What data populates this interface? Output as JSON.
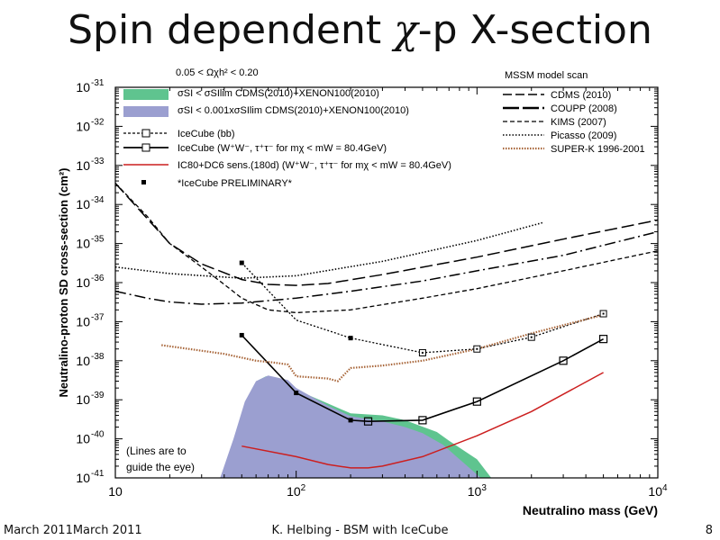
{
  "slide": {
    "title_pre": "Spin dependent ",
    "title_chi": "χ",
    "title_post": "-p X-section",
    "footer_left": "March 2011March 2011",
    "footer_center": "K. Helbing - BSM with IceCube",
    "footer_right": "8"
  },
  "chart_data": {
    "type": "line",
    "xscale": "log",
    "yscale": "log",
    "xlim": [
      10,
      10000
    ],
    "ylim": [
      1e-41,
      1e-31
    ],
    "xlabel": "Neutralino mass (GeV)",
    "ylabel": "Neutralino-proton SD cross-section (cm²)",
    "x_ticks": [
      {
        "value": 10,
        "base": "10",
        "exp": ""
      },
      {
        "value": 100,
        "base": "10",
        "exp": "2"
      },
      {
        "value": 1000,
        "base": "10",
        "exp": "3"
      },
      {
        "value": 10000,
        "base": "10",
        "exp": "4"
      }
    ],
    "y_ticks": [
      {
        "value": 1e-31,
        "base": "10",
        "exp": "-31"
      },
      {
        "value": 1e-32,
        "base": "10",
        "exp": "-32"
      },
      {
        "value": 1e-33,
        "base": "10",
        "exp": "-33"
      },
      {
        "value": 1e-34,
        "base": "10",
        "exp": "-34"
      },
      {
        "value": 1e-35,
        "base": "10",
        "exp": "-35"
      },
      {
        "value": 1e-36,
        "base": "10",
        "exp": "-36"
      },
      {
        "value": 1e-37,
        "base": "10",
        "exp": "-37"
      },
      {
        "value": 1e-38,
        "base": "10",
        "exp": "-38"
      },
      {
        "value": 1e-39,
        "base": "10",
        "exp": "-39"
      },
      {
        "value": 1e-40,
        "base": "10",
        "exp": "-40"
      },
      {
        "value": 1e-41,
        "base": "10",
        "exp": "-41"
      }
    ],
    "top_annotation": "0.05 < Ωχh² < 0.20",
    "model_scan_label": "MSSM model scan",
    "lines_note": [
      "(Lines are to",
      "guide the eye)"
    ],
    "legend_left": [
      {
        "key": "sd_green",
        "label": "σSI < σSIlim CDMS(2010)+XENON100(2010)"
      },
      {
        "key": "sd_violet",
        "label": "σSI < 0.001xσSIlim CDMS(2010)+XENON100(2010)"
      },
      {
        "key": "icecube_bb",
        "label": "IceCube (bb)"
      },
      {
        "key": "icecube_ww",
        "label": "IceCube (W⁺W⁻, τ⁺τ⁻ for mχ < mW = 80.4GeV)"
      },
      {
        "key": "ic80",
        "label": "IC80+DC6 sens.(180d) (W⁺W⁻, τ⁺τ⁻ for mχ < mW = 80.4GeV)"
      },
      {
        "key": "prelim",
        "label": "*IceCube PRELIMINARY*"
      }
    ],
    "legend_right": [
      {
        "key": "cdms",
        "label": "CDMS (2010)"
      },
      {
        "key": "coupp",
        "label": "COUPP (2008)"
      },
      {
        "key": "kims",
        "label": "KIMS (2007)"
      },
      {
        "key": "picasso",
        "label": "Picasso (2009)"
      },
      {
        "key": "superk",
        "label": "SUPER-K 1996-2001"
      }
    ],
    "colors": {
      "green_region": "#5fc48f",
      "violet_region": "#9b9fd0",
      "ic80": "#cc1f1f",
      "superk": "#a8663a",
      "black": "#000000"
    },
    "regions": {
      "green": [
        [
          42,
          1e-41
        ],
        [
          48,
          1.2e-40
        ],
        [
          55,
          1e-39
        ],
        [
          62,
          3.2e-39
        ],
        [
          68,
          4e-39
        ],
        [
          80,
          3.5e-39
        ],
        [
          100,
          1.8e-39
        ],
        [
          150,
          8e-40
        ],
        [
          200,
          4.5e-40
        ],
        [
          300,
          4e-40
        ],
        [
          400,
          3e-40
        ],
        [
          600,
          1.5e-40
        ],
        [
          700,
          9e-41
        ],
        [
          1000,
          3e-41
        ],
        [
          1200,
          1e-41
        ]
      ],
      "violet": [
        [
          38,
          1e-41
        ],
        [
          45,
          1e-40
        ],
        [
          52,
          9e-40
        ],
        [
          60,
          3e-39
        ],
        [
          70,
          4.2e-39
        ],
        [
          90,
          3.2e-39
        ],
        [
          100,
          2e-39
        ],
        [
          150,
          7e-40
        ],
        [
          200,
          3.8e-40
        ],
        [
          300,
          2.8e-40
        ],
        [
          400,
          2e-40
        ],
        [
          500,
          1.4e-40
        ],
        [
          650,
          7e-41
        ],
        [
          800,
          3e-41
        ],
        [
          1050,
          1e-41
        ]
      ]
    },
    "series": [
      {
        "key": "icecube_bb",
        "style": "dotted-markers",
        "x": [
          50,
          100,
          200,
          500,
          1000,
          2000,
          5000
        ],
        "y": [
          3.2e-36,
          1.1e-37,
          3.8e-38,
          1.6e-38,
          2e-38,
          4e-38,
          1.6e-37
        ]
      },
      {
        "key": "icecube_ww",
        "style": "solid-markers",
        "x": [
          50,
          100,
          200,
          250,
          500,
          1000,
          3000,
          5000
        ],
        "y": [
          4.5e-38,
          1.5e-39,
          3e-40,
          2.8e-40,
          3e-40,
          9e-40,
          1e-38,
          3.6e-38
        ]
      },
      {
        "key": "ic80",
        "style": "red",
        "x": [
          50,
          100,
          150,
          200,
          250,
          300,
          500,
          1000,
          2000,
          5000
        ],
        "y": [
          6.5e-41,
          3.5e-41,
          2.2e-41,
          1.8e-41,
          1.8e-41,
          2e-41,
          3.5e-41,
          1.2e-40,
          5e-40,
          5e-39
        ]
      },
      {
        "key": "cdms",
        "style": "longdash",
        "x": [
          10,
          20,
          30,
          50,
          70,
          100,
          150,
          300,
          1000,
          3000,
          10000
        ],
        "y": [
          3.5e-34,
          1e-35,
          3e-36,
          1.2e-36,
          9e-37,
          8.5e-37,
          9.5e-37,
          1.6e-36,
          4.5e-36,
          1.3e-35,
          4e-35
        ]
      },
      {
        "key": "coupp",
        "style": "dashdot",
        "x": [
          10,
          15,
          20,
          30,
          50,
          100,
          200,
          500,
          1000,
          3000,
          10000
        ],
        "y": [
          6e-37,
          4e-37,
          3.2e-37,
          2.8e-37,
          3e-37,
          4e-37,
          6e-37,
          1.1e-36,
          2e-36,
          5e-36,
          2e-35
        ]
      },
      {
        "key": "kims",
        "style": "dash",
        "x": [
          10,
          15,
          20,
          30,
          40,
          50,
          70,
          100,
          200,
          500,
          1000,
          3000,
          10000
        ],
        "y": [
          3.5e-34,
          5e-35,
          1e-35,
          2.5e-36,
          9e-37,
          4e-37,
          2e-37,
          1.7e-37,
          2e-37,
          4e-37,
          7e-37,
          2e-36,
          6.5e-36
        ]
      },
      {
        "key": "picasso",
        "style": "dotted",
        "x": [
          10,
          20,
          50,
          100,
          300,
          1000,
          2300
        ],
        "y": [
          2.5e-36,
          1.7e-36,
          1.3e-36,
          1.5e-36,
          3.5e-36,
          1.2e-35,
          3.4e-35
        ]
      },
      {
        "key": "superk",
        "style": "superk",
        "x": [
          18,
          30,
          40,
          60,
          75,
          90,
          100,
          150,
          170,
          200,
          300,
          500,
          1000,
          2000,
          5000
        ],
        "y": [
          2.5e-38,
          1.8e-38,
          1.5e-38,
          1e-38,
          9e-39,
          8e-39,
          4e-39,
          3.5e-39,
          3e-39,
          6.5e-39,
          7.5e-39,
          1e-38,
          2e-38,
          5e-38,
          1.5e-37
        ]
      }
    ],
    "markers": {
      "prelim_squares": [
        [
          50,
          3.2e-36
        ],
        [
          200,
          3.8e-38
        ],
        [
          50,
          4.5e-38
        ],
        [
          100,
          1.5e-39
        ],
        [
          200,
          3e-40
        ]
      ],
      "bb_open": [
        [
          500,
          1.6e-38
        ],
        [
          1000,
          2e-38
        ],
        [
          2000,
          4e-38
        ],
        [
          5000,
          1.6e-37
        ]
      ],
      "ww_open": [
        [
          250,
          2.8e-40
        ],
        [
          500,
          3e-40
        ],
        [
          1000,
          9e-40
        ],
        [
          3000,
          1e-38
        ],
        [
          5000,
          3.6e-38
        ]
      ]
    }
  }
}
